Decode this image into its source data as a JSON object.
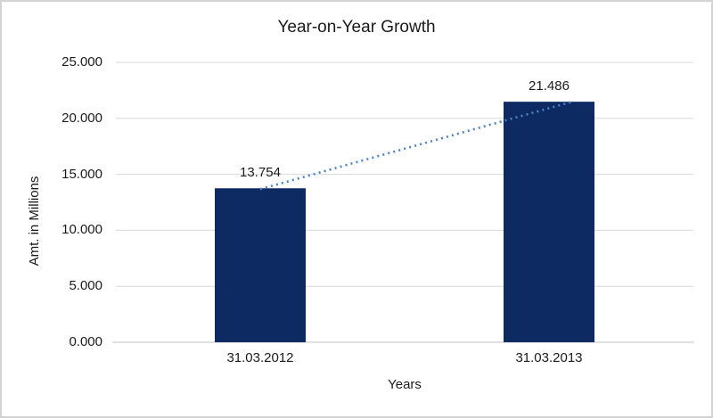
{
  "window": {
    "background": "#ffffff",
    "frame_border_color": "#d3d3d3"
  },
  "chart_data": {
    "type": "bar",
    "title": "Year-on-Year Growth",
    "categories": [
      "31.03.2012",
      "31.03.2013"
    ],
    "values": [
      13.754,
      21.486
    ],
    "data_labels": [
      "13.754",
      "21.486"
    ],
    "xlabel": "Years",
    "ylabel": "Amt. in Millions",
    "ylim": [
      0,
      25
    ],
    "yticks": [
      0,
      5,
      10,
      15,
      20,
      25
    ],
    "ytick_labels": [
      "0.000",
      "5.000",
      "10.000",
      "15.000",
      "20.000",
      "25.000"
    ],
    "grid": true,
    "legend_position": "none",
    "bar_color": "#0d2a63",
    "trendline": {
      "type": "linear",
      "style": "dotted",
      "color": "#4d82c4"
    },
    "gridline_color": "#d9d9d9",
    "axis_line_color": "#c0c0c0",
    "text_color": "#1a1a1a"
  }
}
